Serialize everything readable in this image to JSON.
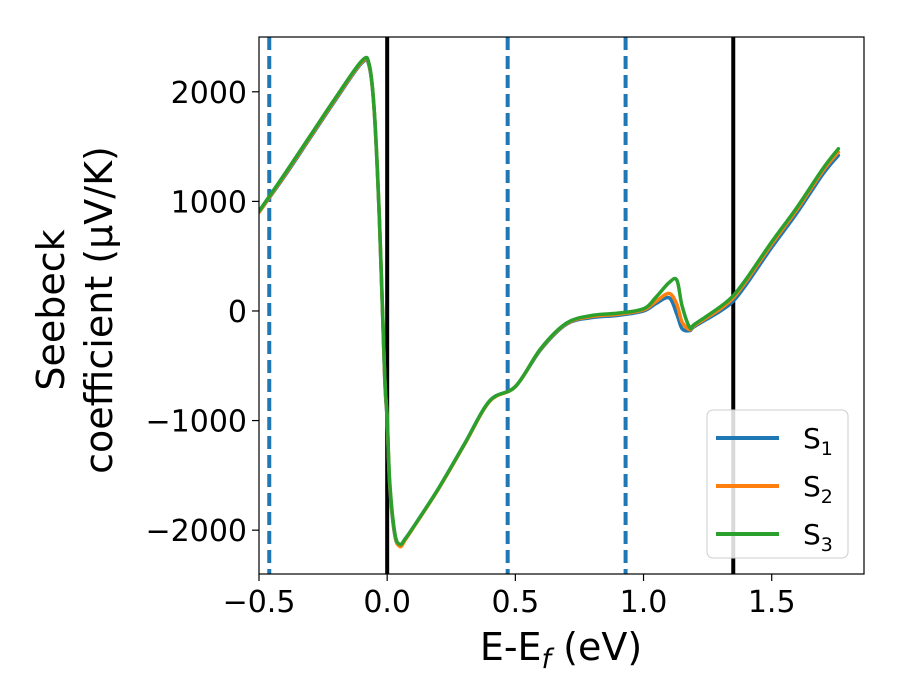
{
  "chart_data": {
    "type": "line",
    "xlabel": "E-E_f (eV)",
    "ylabel_line1": "Seebeck",
    "ylabel_line2": "coefficient  (μV/K)",
    "xlim": [
      -0.5,
      1.86
    ],
    "ylim": [
      -2400,
      2500
    ],
    "xticks": [
      -0.5,
      0.0,
      0.5,
      1.0,
      1.5
    ],
    "xtick_labels": [
      "−0.5",
      "0.0",
      "0.5",
      "1.0",
      "1.5"
    ],
    "yticks": [
      -2000,
      -1000,
      0,
      1000,
      2000
    ],
    "ytick_labels": [
      "−2000",
      "−1000",
      "0",
      "1000",
      "2000"
    ],
    "legend_position": "bottom-right",
    "vertical_lines": [
      {
        "x": -0.46,
        "style": "dashed",
        "color": "#1f77b4"
      },
      {
        "x": 0.0,
        "style": "solid",
        "color": "#000000"
      },
      {
        "x": 0.47,
        "style": "dashed",
        "color": "#1f77b4"
      },
      {
        "x": 0.93,
        "style": "dashed",
        "color": "#1f77b4"
      },
      {
        "x": 1.35,
        "style": "solid",
        "color": "#000000"
      }
    ],
    "series": [
      {
        "name": "S_1",
        "legend_main": "S",
        "legend_sub": "1",
        "color": "#1f77b4",
        "x": [
          -0.5,
          -0.4,
          -0.3,
          -0.2,
          -0.1,
          -0.07,
          -0.05,
          -0.03,
          -0.01,
          0.0,
          0.01,
          0.03,
          0.05,
          0.07,
          0.1,
          0.2,
          0.3,
          0.4,
          0.5,
          0.6,
          0.7,
          0.8,
          0.9,
          1.0,
          1.05,
          1.1,
          1.13,
          1.15,
          1.18,
          1.2,
          1.3,
          1.35,
          1.4,
          1.5,
          1.6,
          1.7,
          1.76
        ],
        "y": [
          900,
          1230,
          1580,
          1930,
          2260,
          2230,
          1800,
          800,
          -600,
          -1000,
          -1600,
          -2050,
          -2140,
          -2080,
          -1980,
          -1620,
          -1220,
          -820,
          -690,
          -350,
          -120,
          -60,
          -40,
          0,
          70,
          120,
          -30,
          -160,
          -180,
          -140,
          0,
          90,
          240,
          580,
          900,
          1250,
          1420
        ]
      },
      {
        "name": "S_2",
        "legend_main": "S",
        "legend_sub": "2",
        "color": "#ff7f0e",
        "x": [
          -0.5,
          -0.4,
          -0.3,
          -0.2,
          -0.1,
          -0.07,
          -0.05,
          -0.03,
          -0.01,
          0.0,
          0.01,
          0.03,
          0.05,
          0.07,
          0.1,
          0.2,
          0.3,
          0.4,
          0.5,
          0.6,
          0.7,
          0.8,
          0.9,
          1.0,
          1.05,
          1.1,
          1.13,
          1.15,
          1.18,
          1.2,
          1.3,
          1.35,
          1.4,
          1.5,
          1.6,
          1.7,
          1.76
        ],
        "y": [
          900,
          1240,
          1590,
          1940,
          2270,
          2240,
          1810,
          820,
          -580,
          -980,
          -1580,
          -2040,
          -2150,
          -2090,
          -1985,
          -1625,
          -1225,
          -825,
          -690,
          -345,
          -115,
          -50,
          -30,
          10,
          90,
          160,
          60,
          -100,
          -170,
          -130,
          20,
          120,
          270,
          610,
          930,
          1280,
          1450
        ]
      },
      {
        "name": "S_3",
        "legend_main": "S",
        "legend_sub": "3",
        "color": "#2ca02c",
        "x": [
          -0.5,
          -0.4,
          -0.3,
          -0.2,
          -0.1,
          -0.07,
          -0.05,
          -0.03,
          -0.01,
          0.0,
          0.01,
          0.03,
          0.05,
          0.07,
          0.1,
          0.2,
          0.3,
          0.4,
          0.5,
          0.6,
          0.7,
          0.8,
          0.9,
          1.0,
          1.05,
          1.1,
          1.13,
          1.15,
          1.18,
          1.2,
          1.3,
          1.35,
          1.4,
          1.5,
          1.6,
          1.7,
          1.76
        ],
        "y": [
          910,
          1250,
          1600,
          1950,
          2280,
          2250,
          1820,
          830,
          -560,
          -960,
          -1560,
          -2030,
          -2130,
          -2080,
          -1980,
          -1620,
          -1220,
          -820,
          -690,
          -340,
          -110,
          -40,
          -20,
          20,
          130,
          260,
          280,
          50,
          -150,
          -120,
          40,
          140,
          290,
          630,
          950,
          1300,
          1480
        ]
      }
    ]
  }
}
